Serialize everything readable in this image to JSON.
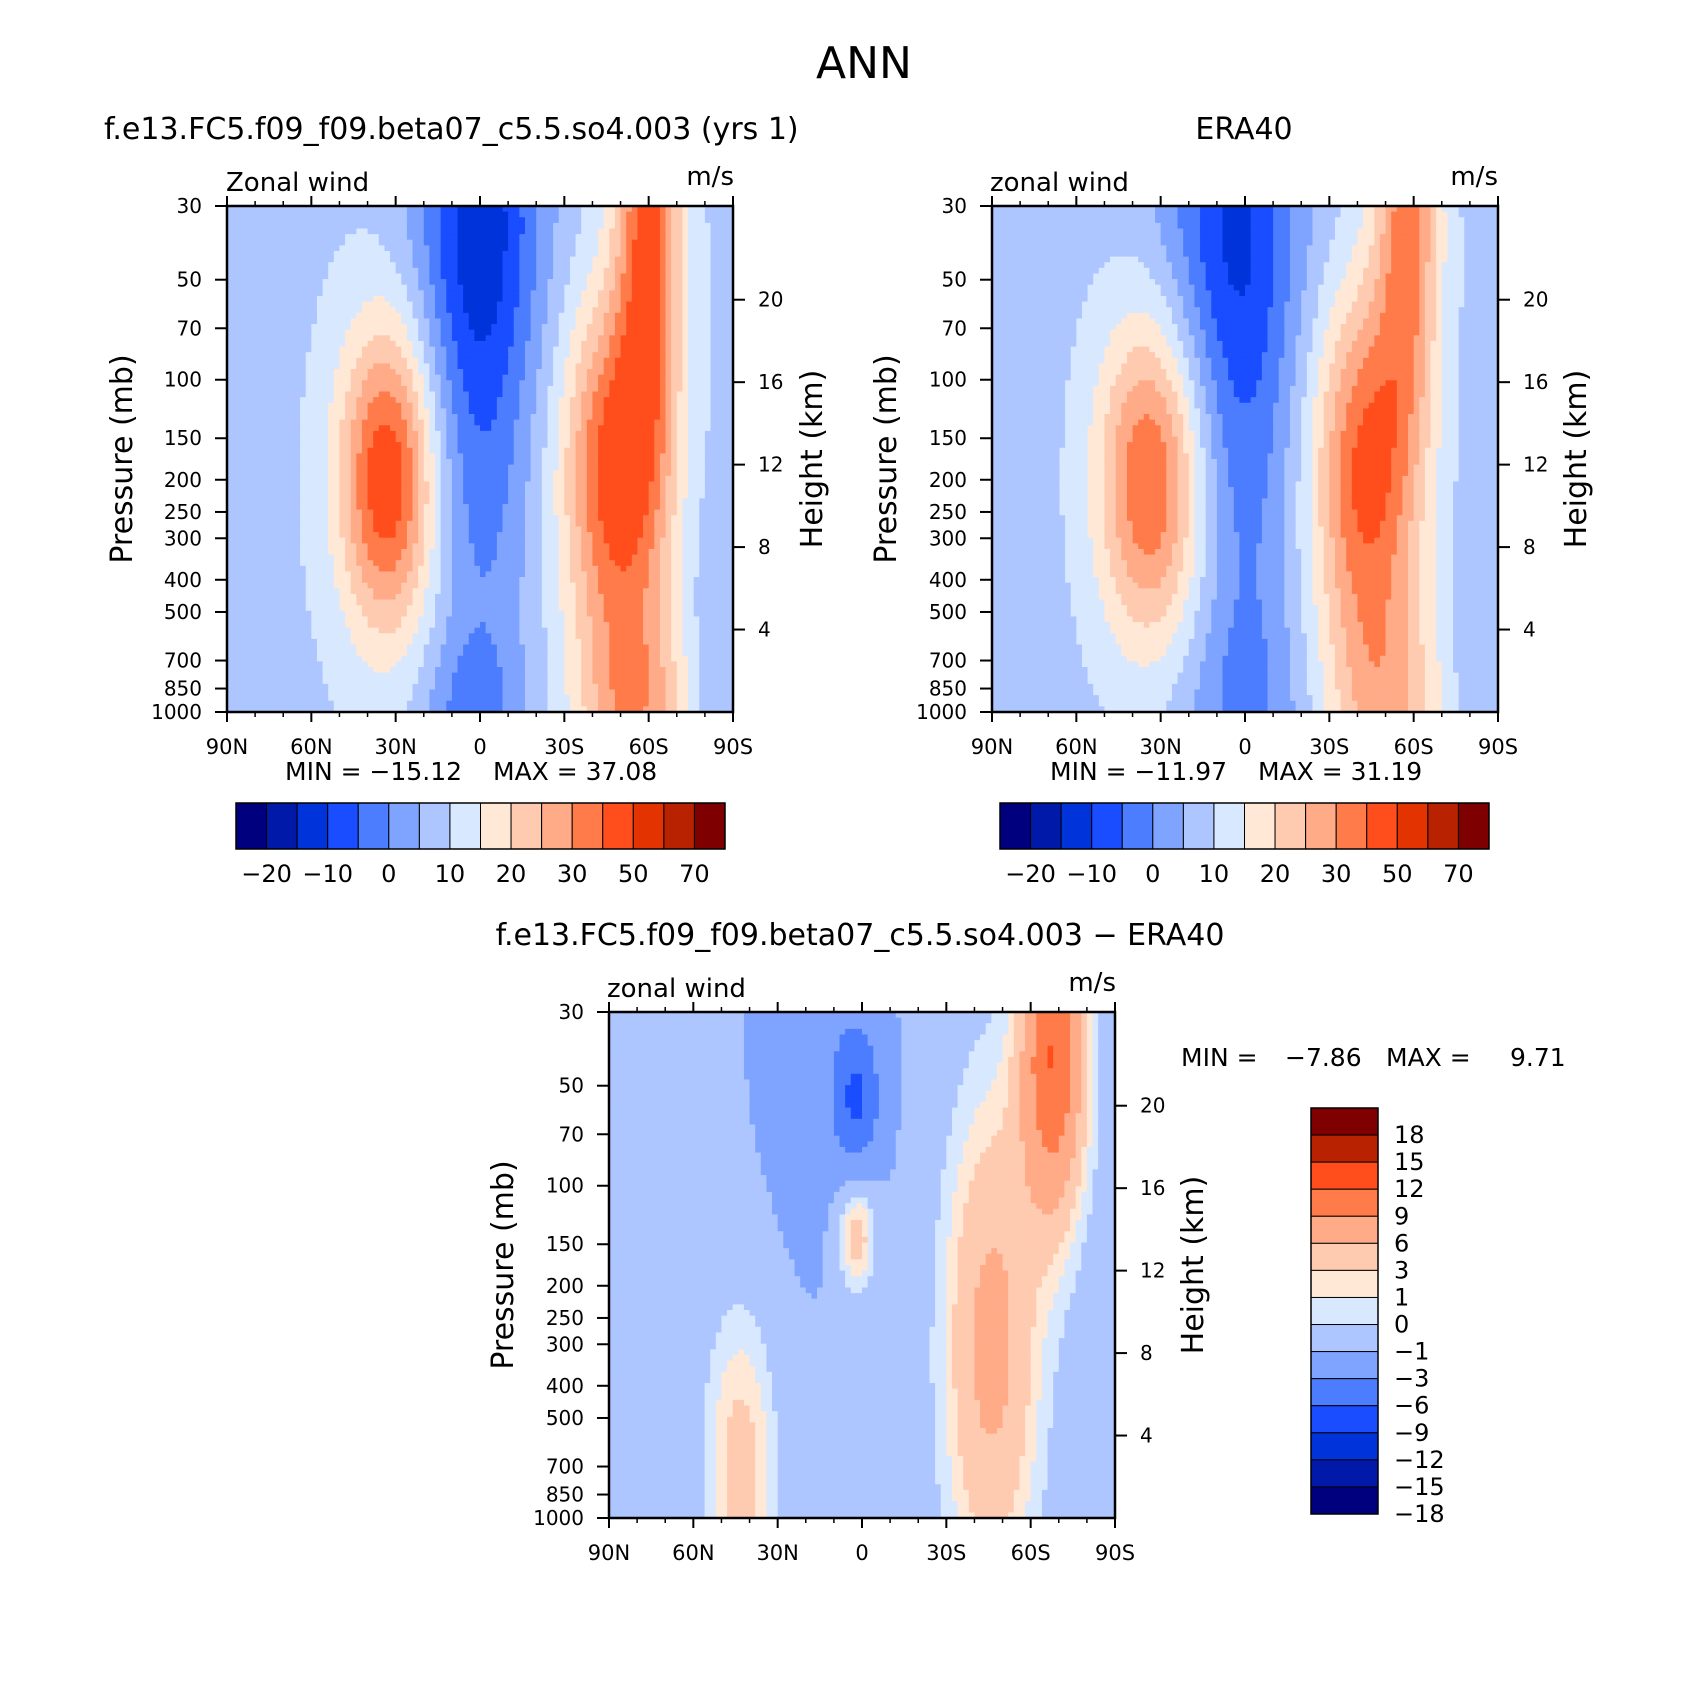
{
  "figure": {
    "title": "ANN"
  },
  "colors": {
    "panel_palette": [
      "#00007f",
      "#0019a8",
      "#0033d9",
      "#1a4dff",
      "#4d7dff",
      "#7fa4ff",
      "#adc6ff",
      "#d8e8ff",
      "#ffe8d5",
      "#ffcbb0",
      "#ffab88",
      "#ff7b4a",
      "#ff4e1c",
      "#e33300",
      "#b82200",
      "#7f0000"
    ],
    "diff_palette": [
      "#00007f",
      "#0019a8",
      "#0033d9",
      "#1a4dff",
      "#4d7dff",
      "#7fa4ff",
      "#adc6ff",
      "#d8e8ff",
      "#ffe8d5",
      "#ffcbb0",
      "#ffab88",
      "#ff7b4a",
      "#ff4e1c",
      "#b82200",
      "#7f0000"
    ]
  },
  "chart_data": [
    {
      "id": "model",
      "type": "contour",
      "title": "f.e13.FC5.f09_f09.beta07_c5.5.so4.003 (yrs 1)",
      "variable_label": "Zonal wind",
      "units": "m/s",
      "ylabel": "Pressure (mb)",
      "ylabel_right": "Height (km)",
      "x_ticks": [
        "90N",
        "60N",
        "30N",
        "0",
        "30S",
        "60S",
        "90S"
      ],
      "y_ticks": [
        "30",
        "50",
        "70",
        "100",
        "150",
        "200",
        "250",
        "300",
        "400",
        "500",
        "700",
        "850",
        "1000"
      ],
      "height_ticks": [
        "20",
        "16",
        "12",
        "8",
        "4"
      ],
      "ylim": [
        1000,
        30
      ],
      "xlim": [
        90,
        -90
      ],
      "min_text": "MIN = −15.12",
      "max_text": "MAX = 37.08",
      "min": -15.12,
      "max": 37.08,
      "levels": [
        -25,
        -20,
        -15,
        -10,
        -5,
        0,
        5,
        10,
        15,
        20,
        25,
        30,
        40,
        50,
        60,
        70
      ],
      "colorbar_labels": [
        "−20",
        "−10",
        "0",
        "10",
        "20",
        "30",
        "50",
        "70"
      ],
      "features": [
        {
          "kind": "jet",
          "lat": 33,
          "p": 200,
          "peak": 31
        },
        {
          "kind": "jet",
          "lat": -48,
          "p": 200,
          "peak": 33
        },
        {
          "kind": "polar-night-jet",
          "lat": -62,
          "p": 30,
          "peak": 37
        },
        {
          "kind": "easterlies",
          "lat": 0,
          "p": 30,
          "min": -15
        }
      ]
    },
    {
      "id": "obs",
      "type": "contour",
      "title": "ERA40",
      "variable_label": "zonal wind",
      "units": "m/s",
      "ylabel": "Pressure (mb)",
      "ylabel_right": "Height (km)",
      "x_ticks": [
        "90N",
        "60N",
        "30N",
        "0",
        "30S",
        "60S",
        "90S"
      ],
      "y_ticks": [
        "30",
        "50",
        "70",
        "100",
        "150",
        "200",
        "250",
        "300",
        "400",
        "500",
        "700",
        "850",
        "1000"
      ],
      "height_ticks": [
        "20",
        "16",
        "12",
        "8",
        "4"
      ],
      "ylim": [
        1000,
        30
      ],
      "xlim": [
        90,
        -90
      ],
      "min_text": "MIN = −11.97",
      "max_text": "MAX = 31.19",
      "min": -11.97,
      "max": 31.19,
      "levels": [
        -25,
        -20,
        -15,
        -10,
        -5,
        0,
        5,
        10,
        15,
        20,
        25,
        30,
        40,
        50,
        60,
        70
      ],
      "colorbar_labels": [
        "−20",
        "−10",
        "0",
        "10",
        "20",
        "30",
        "50",
        "70"
      ],
      "features": [
        {
          "kind": "jet",
          "lat": 34,
          "p": 200,
          "peak": 28
        },
        {
          "kind": "jet",
          "lat": -43,
          "p": 200,
          "peak": 31
        },
        {
          "kind": "polar-night-jet",
          "lat": -60,
          "p": 30,
          "peak": 31
        },
        {
          "kind": "easterlies",
          "lat": 5,
          "p": 30,
          "min": -12
        }
      ]
    },
    {
      "id": "diff",
      "type": "contour",
      "title": "f.e13.FC5.f09_f09.beta07_c5.5.so4.003 − ERA40",
      "variable_label": "zonal wind",
      "units": "m/s",
      "ylabel": "Pressure (mb)",
      "ylabel_right": "Height (km)",
      "x_ticks": [
        "90N",
        "60N",
        "30N",
        "0",
        "30S",
        "60S",
        "90S"
      ],
      "y_ticks": [
        "30",
        "50",
        "70",
        "100",
        "150",
        "200",
        "250",
        "300",
        "400",
        "500",
        "700",
        "850",
        "1000"
      ],
      "height_ticks": [
        "20",
        "16",
        "12",
        "8",
        "4"
      ],
      "ylim": [
        1000,
        30
      ],
      "xlim": [
        90,
        -90
      ],
      "min_label": "MIN =",
      "min_value": "−7.86",
      "max_label": "MAX =",
      "max_value": "9.71",
      "min": -7.86,
      "max": 9.71,
      "levels": [
        -18,
        -15,
        -12,
        -9,
        -6,
        -3,
        -1,
        0,
        1,
        3,
        6,
        9,
        12,
        15,
        18
      ],
      "colorbar_labels": [
        "18",
        "15",
        "12",
        "9",
        "6",
        "3",
        "1",
        "0",
        "−1",
        "−3",
        "−6",
        "−9",
        "−12",
        "−15",
        "−18"
      ],
      "features": [
        {
          "kind": "positive",
          "lat": -68,
          "p": 40,
          "peak": 9.7
        },
        {
          "kind": "positive",
          "lat": -45,
          "p": 300,
          "peak": 5
        },
        {
          "kind": "positive",
          "lat": 43,
          "p": 700,
          "peak": 2
        },
        {
          "kind": "positive",
          "lat": 2,
          "p": 140,
          "peak": 3
        },
        {
          "kind": "negative",
          "lat": 2,
          "p": 55,
          "peak": -7.9
        }
      ]
    }
  ]
}
